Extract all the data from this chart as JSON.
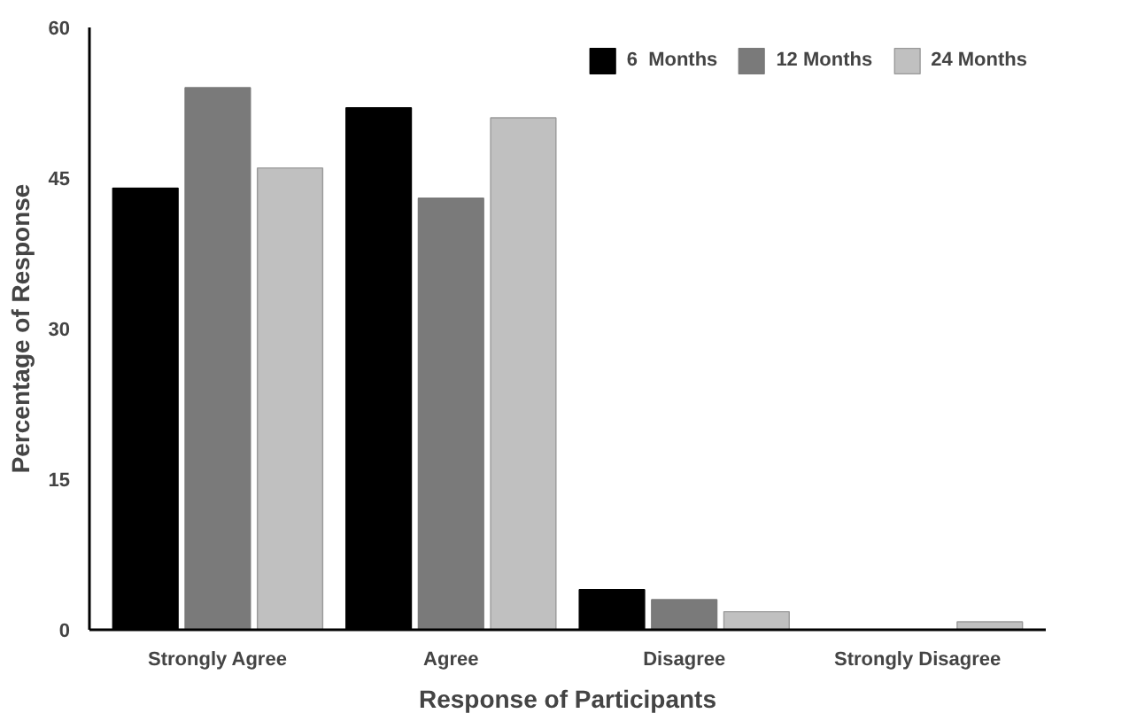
{
  "chart_data": {
    "type": "bar",
    "xlabel": "Response of Participants",
    "ylabel": "Percentage of Response",
    "categories": [
      "Strongly Agree",
      "Agree",
      "Disagree",
      "Strongly Disagree"
    ],
    "series": [
      {
        "name": "6  Months",
        "color": "#000000",
        "values": [
          44,
          52,
          4,
          0
        ]
      },
      {
        "name": "12 Months",
        "color": "#7a7a7a",
        "values": [
          54,
          43,
          3,
          0
        ]
      },
      {
        "name": "24 Months",
        "color": "#c0c0c0",
        "values": [
          46,
          51,
          1.8,
          0.8
        ]
      }
    ],
    "ylim": [
      0,
      60
    ],
    "yticks": [
      0,
      15,
      30,
      45,
      60
    ],
    "grid": false,
    "legend": "top right"
  }
}
